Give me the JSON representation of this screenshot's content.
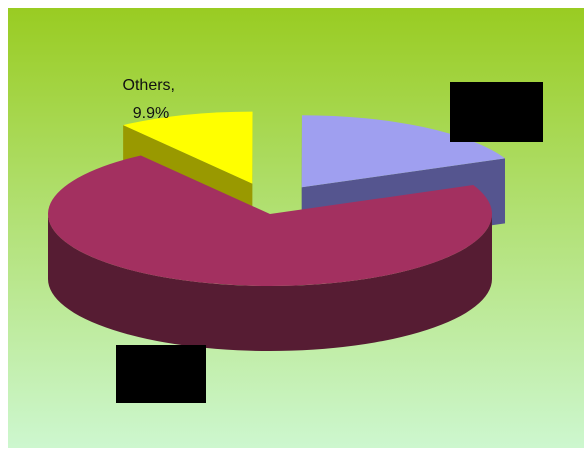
{
  "chart_data": {
    "type": "pie",
    "style": "3d-exploded",
    "title": "",
    "slices": [
      {
        "label": "",
        "value": 18.4,
        "color": "#9f9ff0",
        "side_color": "#55558f",
        "explode": true,
        "label_redacted": true
      },
      {
        "label": "",
        "value": 71.7,
        "color": "#a33060",
        "side_color": "#561c33",
        "explode": false,
        "label_redacted": true
      },
      {
        "label": "Others",
        "value_text": "9.9%",
        "value": 9.9,
        "color": "#ffff00",
        "side_color": "#999900",
        "explode": true,
        "label_redacted": false
      }
    ],
    "legend": "none",
    "background": {
      "top": "#99cc22",
      "bottom": "#cdf7cf"
    }
  }
}
